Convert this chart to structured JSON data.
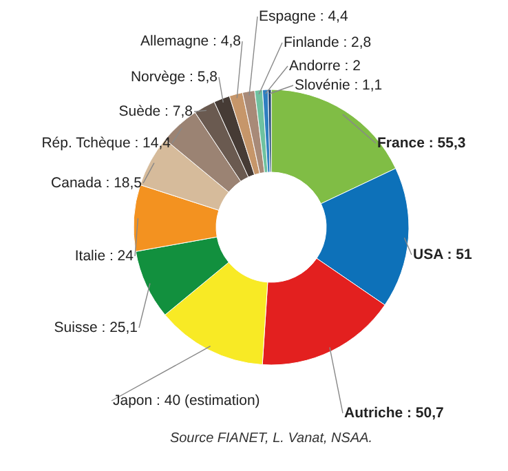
{
  "chart_data": {
    "type": "donut",
    "categories": [
      "France",
      "USA",
      "Autriche",
      "Japon",
      "Suisse",
      "Italie",
      "Canada",
      "Rép. Tchèque",
      "Suède",
      "Norvège",
      "Allemagne",
      "Espagne",
      "Finlande",
      "Andorre",
      "Slovénie"
    ],
    "values": [
      55.3,
      51,
      50.7,
      40,
      25.1,
      24,
      18.5,
      14.4,
      7.8,
      5.8,
      4.8,
      4.4,
      2.8,
      2,
      1.1
    ],
    "value_labels": [
      "55,3",
      "51",
      "50,7",
      "40 (estimation)",
      "25,1",
      "24",
      "18,5",
      "14,4",
      "7,8",
      "5,8",
      "4,8",
      "4,4",
      "2,8",
      "2",
      "1,1"
    ],
    "colors": [
      "#80bd45",
      "#0d71b9",
      "#e3201f",
      "#f8ea25",
      "#12903e",
      "#f39220",
      "#d6bb9b",
      "#9b8373",
      "#6a5a50",
      "#463b35",
      "#c6966a",
      "#a88a78",
      "#6fc2a0",
      "#2f7fc0",
      "#1a3f70"
    ],
    "annotations": [
      "Source FIANET, L. Vanat, NSAA."
    ]
  }
}
